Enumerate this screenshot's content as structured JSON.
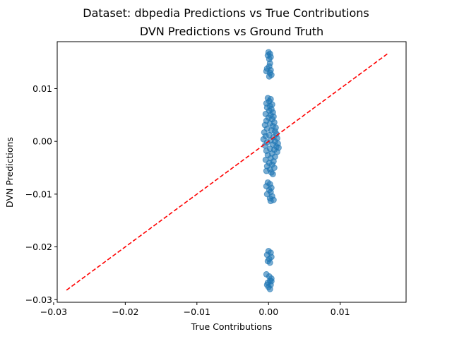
{
  "chart_data": {
    "type": "scatter",
    "suptitle": "Dataset: dbpedia Predictions vs True Contributions",
    "title": "DVN Predictions vs Ground Truth",
    "xlabel": "True Contributions",
    "ylabel": "DVN Predictions",
    "xlim": [
      -0.0295,
      0.0192
    ],
    "ylim": [
      -0.0305,
      0.0189
    ],
    "x_ticks": [
      -0.03,
      -0.02,
      -0.01,
      0.0,
      0.01
    ],
    "x_tick_labels": [
      "−0.03",
      "−0.02",
      "−0.01",
      "0.00",
      "0.01"
    ],
    "y_ticks": [
      -0.03,
      -0.02,
      -0.01,
      0.0,
      0.01
    ],
    "y_tick_labels": [
      "−0.03",
      "−0.02",
      "−0.01",
      "0.00",
      "0.01"
    ],
    "grid": false,
    "colors": {
      "points": "#1f77b4",
      "reference_line": "#ff0000"
    },
    "reference_line": {
      "style": "dashed",
      "from": [
        -0.0282,
        -0.0282
      ],
      "to": [
        0.0167,
        0.0167
      ]
    },
    "series": [
      {
        "points": [
          [
            0.0,
            0.0169
          ],
          [
            0.0002,
            0.0166
          ],
          [
            -0.0001,
            0.0163
          ],
          [
            0.0003,
            0.016
          ],
          [
            0.0001,
            0.0156
          ],
          [
            0.0002,
            0.0148
          ],
          [
            0.0001,
            0.0142
          ],
          [
            -0.0002,
            0.0138
          ],
          [
            0.0003,
            0.0135
          ],
          [
            -0.0003,
            0.0133
          ],
          [
            0.0002,
            0.013
          ],
          [
            0.0004,
            0.0126
          ],
          [
            0.0001,
            0.0123
          ],
          [
            -0.0001,
            0.0082
          ],
          [
            0.0003,
            0.008
          ],
          [
            0.0001,
            0.0076
          ],
          [
            -0.0003,
            0.0072
          ],
          [
            0.0005,
            0.007
          ],
          [
            0.0002,
            0.0067
          ],
          [
            -0.0002,
            0.0064
          ],
          [
            0.0004,
            0.0061
          ],
          [
            0.0001,
            0.0058
          ],
          [
            0.0006,
            0.0055
          ],
          [
            -0.0004,
            0.0052
          ],
          [
            0.0003,
            0.005
          ],
          [
            0.0007,
            0.0047
          ],
          [
            0.0,
            0.0045
          ],
          [
            0.0005,
            0.0042
          ],
          [
            -0.0003,
            0.0039
          ],
          [
            0.0008,
            0.0036
          ],
          [
            0.0002,
            0.0034
          ],
          [
            -0.0005,
            0.0031
          ],
          [
            0.0006,
            0.0029
          ],
          [
            0.001,
            0.0026
          ],
          [
            -0.0002,
            0.0024
          ],
          [
            0.0004,
            0.0021
          ],
          [
            0.0009,
            0.0019
          ],
          [
            -0.0006,
            0.0017
          ],
          [
            0.0011,
            0.0014
          ],
          [
            0.0001,
            0.0012
          ],
          [
            -0.0004,
            0.001
          ],
          [
            0.0007,
            0.0008
          ],
          [
            0.0012,
            0.0006
          ],
          [
            -0.0007,
            0.0004
          ],
          [
            0.0003,
            0.0002
          ],
          [
            0.0009,
            0.0
          ],
          [
            -0.0002,
            -0.0002
          ],
          [
            0.0013,
            -0.0004
          ],
          [
            0.0006,
            -0.0006
          ],
          [
            -0.0005,
            -0.0008
          ],
          [
            0.0011,
            -0.001
          ],
          [
            0.0014,
            -0.0012
          ],
          [
            0.0002,
            -0.0014
          ],
          [
            0.0008,
            -0.0016
          ],
          [
            -0.0003,
            -0.0018
          ],
          [
            0.0012,
            -0.002
          ],
          [
            0.0005,
            -0.0023
          ],
          [
            -0.0001,
            -0.0026
          ],
          [
            0.0009,
            -0.0029
          ],
          [
            0.0003,
            -0.0032
          ],
          [
            -0.0004,
            -0.0035
          ],
          [
            0.0007,
            -0.0038
          ],
          [
            0.0001,
            -0.0041
          ],
          [
            0.0005,
            -0.0044
          ],
          [
            -0.0002,
            -0.0047
          ],
          [
            0.0008,
            -0.005
          ],
          [
            0.0002,
            -0.0053
          ],
          [
            -0.0003,
            -0.0056
          ],
          [
            0.0004,
            -0.0059
          ],
          [
            0.0006,
            -0.0062
          ],
          [
            -0.0001,
            -0.0078
          ],
          [
            0.0002,
            -0.0081
          ],
          [
            -0.0003,
            -0.0085
          ],
          [
            0.0004,
            -0.0088
          ],
          [
            0.0001,
            -0.0092
          ],
          [
            0.0003,
            -0.0096
          ],
          [
            -0.0002,
            -0.01
          ],
          [
            0.0005,
            -0.0104
          ],
          [
            0.0002,
            -0.0108
          ],
          [
            0.0007,
            -0.0111
          ],
          [
            0.0003,
            -0.0113
          ],
          [
            0.0,
            -0.0208
          ],
          [
            0.0003,
            -0.0211
          ],
          [
            -0.0002,
            -0.0215
          ],
          [
            0.0004,
            -0.0219
          ],
          [
            0.0001,
            -0.0223
          ],
          [
            -0.0001,
            -0.0227
          ],
          [
            0.0002,
            -0.023
          ],
          [
            -0.0003,
            -0.0252
          ],
          [
            0.0001,
            -0.0256
          ],
          [
            0.0004,
            -0.026
          ],
          [
            0.0002,
            -0.0264
          ],
          [
            -0.0001,
            -0.0268
          ],
          [
            0.0003,
            -0.0272
          ],
          [
            0.0,
            -0.0276
          ],
          [
            0.0002,
            -0.028
          ],
          [
            -0.0002,
            -0.0272
          ],
          [
            0.0004,
            -0.0265
          ]
        ]
      }
    ]
  }
}
